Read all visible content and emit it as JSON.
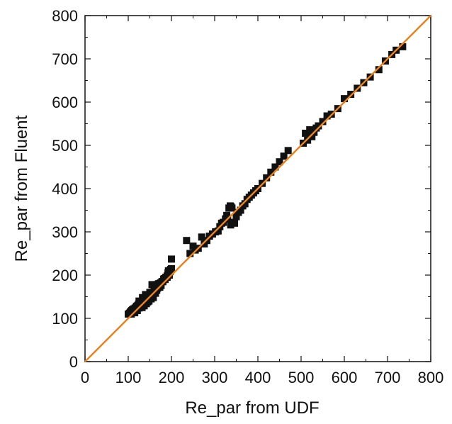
{
  "chart_data": {
    "type": "scatter",
    "title": "",
    "xlabel": "Re_par from UDF",
    "ylabel": "Re_par from Fluent",
    "xlim": [
      0,
      800
    ],
    "ylim": [
      0,
      800
    ],
    "xticks": [
      "0",
      "100",
      "200",
      "300",
      "400",
      "500",
      "600",
      "700",
      "800"
    ],
    "yticks": [
      "0",
      "100",
      "200",
      "300",
      "400",
      "500",
      "600",
      "700",
      "800"
    ],
    "grid": false,
    "legend": "none",
    "colors": {
      "marker": "#111111",
      "reference_line": "#E8821E"
    },
    "reference_line": {
      "x": [
        0,
        800
      ],
      "y": [
        0,
        800
      ]
    },
    "series": [
      {
        "marker": "square",
        "x": [
          100,
          103,
          105,
          107,
          108,
          110,
          112,
          113,
          115,
          116,
          118,
          119,
          120,
          121,
          122,
          123,
          124,
          125,
          126,
          127,
          128,
          129,
          130,
          131,
          132,
          133,
          134,
          135,
          136,
          137,
          138,
          139,
          140,
          141,
          142,
          143,
          144,
          145,
          146,
          147,
          148,
          150,
          152,
          153,
          155,
          156,
          158,
          160,
          160,
          162,
          163,
          165,
          166,
          168,
          170,
          172,
          173,
          175,
          176,
          178,
          180,
          182,
          183,
          185,
          187,
          190,
          192,
          193,
          195,
          197,
          198,
          200,
          125,
          133,
          140,
          150,
          155,
          162,
          170,
          175,
          180,
          185,
          190,
          195,
          200,
          235,
          243,
          250,
          255,
          262,
          270,
          276,
          282,
          288,
          295,
          302,
          308,
          312,
          316,
          320,
          325,
          328,
          330,
          333,
          336,
          338,
          340,
          337,
          342,
          346,
          350,
          355,
          360,
          365,
          370,
          375,
          380,
          385,
          390,
          395,
          400,
          410,
          420,
          430,
          440,
          450,
          460,
          470,
          505,
          510,
          515,
          520,
          525,
          530,
          535,
          540,
          550,
          560,
          570,
          585,
          600,
          615,
          630,
          645,
          660,
          680,
          695,
          710,
          720,
          735
        ],
        "y": [
          110,
          112,
          115,
          110,
          118,
          120,
          116,
          122,
          113,
          124,
          120,
          128,
          125,
          118,
          130,
          126,
          133,
          124,
          132,
          128,
          127,
          135,
          130,
          138,
          125,
          137,
          132,
          140,
          135,
          129,
          145,
          137,
          150,
          140,
          134,
          148,
          142,
          138,
          152,
          145,
          140,
          150,
          155,
          145,
          160,
          150,
          148,
          170,
          162,
          175,
          158,
          178,
          165,
          170,
          175,
          180,
          172,
          182,
          176,
          185,
          185,
          190,
          192,
          190,
          195,
          198,
          205,
          210,
          200,
          208,
          213,
          215,
          140,
          148,
          155,
          160,
          178,
          175,
          180,
          182,
          185,
          190,
          195,
          200,
          237,
          280,
          250,
          267,
          258,
          262,
          288,
          272,
          280,
          290,
          295,
          300,
          302,
          312,
          320,
          322,
          330,
          338,
          330,
          355,
          360,
          358,
          355,
          316,
          322,
          320,
          335,
          345,
          350,
          360,
          365,
          375,
          380,
          385,
          390,
          395,
          400,
          412,
          425,
          438,
          450,
          462,
          475,
          488,
          505,
          528,
          512,
          536,
          520,
          530,
          540,
          545,
          555,
          568,
          572,
          585,
          608,
          618,
          632,
          645,
          658,
          675,
          695,
          710,
          720,
          728
        ]
      }
    ]
  }
}
